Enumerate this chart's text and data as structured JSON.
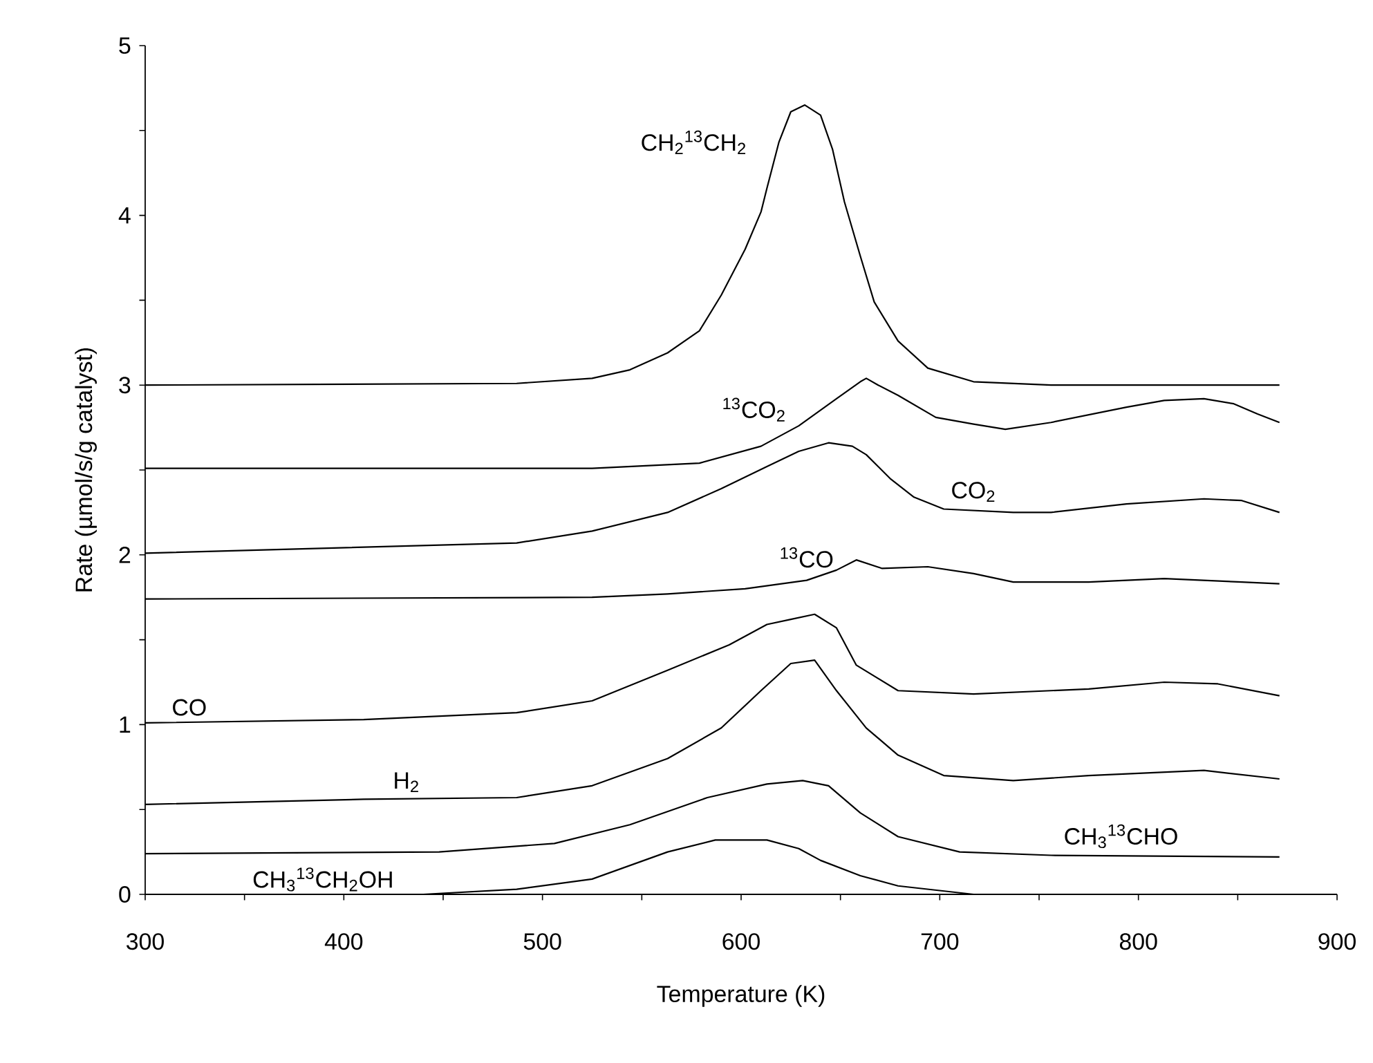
{
  "chart_data": {
    "type": "line",
    "xlabel": "Temperature (K)",
    "ylabel": "Rate (µmol/s/g catalyst)",
    "xlim": [
      300,
      900
    ],
    "ylim": [
      0,
      5
    ],
    "xticks": [
      300,
      {
        "value": 350,
        "label": null
      },
      400,
      {
        "value": 450,
        "label": null
      },
      500,
      {
        "value": 550,
        "label": null
      },
      600,
      {
        "value": 650,
        "label": null
      },
      700,
      {
        "value": 750,
        "label": null
      },
      800,
      {
        "value": 850,
        "label": null
      },
      900
    ],
    "yticks": [
      0,
      {
        "value": 0.5,
        "label": null
      },
      1,
      {
        "value": 1.5,
        "label": null
      },
      2,
      {
        "value": 2.5,
        "label": null
      },
      3,
      {
        "value": 3.5,
        "label": null
      },
      4,
      {
        "value": 4.5,
        "label": null
      },
      5
    ],
    "grid": false,
    "legend": false,
    "marker": "none",
    "line_style": "solid",
    "series": [
      {
        "name": "CH$_{2}$$^{13}$CH$_{2}$",
        "color": "#000000",
        "x": [
          300,
          487,
          525,
          544,
          563,
          579,
          590,
          602,
          610,
          613,
          619,
          625,
          632,
          640,
          646,
          652,
          660,
          667,
          679,
          694,
          717,
          756,
          871
        ],
        "values": [
          3.0,
          3.01,
          3.04,
          3.09,
          3.19,
          3.32,
          3.53,
          3.8,
          4.02,
          4.16,
          4.43,
          4.61,
          4.65,
          4.59,
          4.39,
          4.08,
          3.76,
          3.49,
          3.26,
          3.1,
          3.02,
          3.0,
          3.0
        ]
      },
      {
        "name": "$^{13}$CO$_{2}$",
        "color": "#000000",
        "x": [
          300,
          525,
          579,
          610,
          629,
          648,
          660,
          663,
          669,
          679,
          698,
          717,
          733,
          756,
          794,
          813,
          833,
          848,
          860,
          871
        ],
        "values": [
          2.51,
          2.51,
          2.54,
          2.64,
          2.76,
          2.92,
          3.02,
          3.04,
          3.0,
          2.94,
          2.81,
          2.77,
          2.74,
          2.78,
          2.87,
          2.91,
          2.92,
          2.89,
          2.83,
          2.78
        ]
      },
      {
        "name": "CO$_{2}$",
        "color": "#000000",
        "x": [
          300,
          487,
          525,
          563,
          590,
          613,
          629,
          644,
          656,
          663,
          675,
          687,
          702,
          737,
          756,
          794,
          833,
          852,
          871
        ],
        "values": [
          2.01,
          2.07,
          2.14,
          2.25,
          2.39,
          2.52,
          2.61,
          2.66,
          2.64,
          2.59,
          2.45,
          2.34,
          2.27,
          2.25,
          2.25,
          2.3,
          2.33,
          2.32,
          2.25
        ]
      },
      {
        "name": "$^{13}$CO",
        "color": "#000000",
        "x": [
          300,
          525,
          563,
          602,
          633,
          648,
          658,
          671,
          694,
          717,
          737,
          775,
          813,
          852,
          871
        ],
        "values": [
          1.74,
          1.75,
          1.77,
          1.8,
          1.85,
          1.91,
          1.97,
          1.92,
          1.93,
          1.89,
          1.84,
          1.84,
          1.86,
          1.84,
          1.83
        ]
      },
      {
        "name": "CO",
        "color": "#000000",
        "x": [
          300,
          410,
          487,
          525,
          563,
          594,
          613,
          625,
          637,
          648,
          658,
          679,
          717,
          775,
          813,
          840,
          871
        ],
        "values": [
          1.01,
          1.03,
          1.07,
          1.14,
          1.32,
          1.47,
          1.59,
          1.62,
          1.65,
          1.57,
          1.35,
          1.2,
          1.18,
          1.21,
          1.25,
          1.24,
          1.17
        ]
      },
      {
        "name": "H$_{2}$",
        "color": "#000000",
        "x": [
          300,
          410,
          487,
          525,
          563,
          590,
          610,
          625,
          637,
          648,
          663,
          679,
          702,
          737,
          775,
          833,
          871
        ],
        "values": [
          0.53,
          0.56,
          0.57,
          0.64,
          0.8,
          0.98,
          1.2,
          1.36,
          1.38,
          1.2,
          0.98,
          0.82,
          0.7,
          0.67,
          0.7,
          0.73,
          0.68
        ]
      },
      {
        "name": "CH$_{3}$$^{13}$CHO",
        "color": "#000000",
        "x": [
          300,
          448,
          506,
          544,
          583,
          613,
          631,
          644,
          660,
          679,
          710,
          756,
          871
        ],
        "values": [
          0.24,
          0.25,
          0.3,
          0.41,
          0.57,
          0.65,
          0.67,
          0.64,
          0.48,
          0.34,
          0.25,
          0.23,
          0.22
        ]
      },
      {
        "name": "CH$_{3}$$^{13}$CH$_{2}$OH",
        "color": "#000000",
        "x": [
          400,
          440,
          487,
          525,
          563,
          587,
          613,
          629,
          640,
          660,
          679,
          717,
          871
        ],
        "values": [
          0,
          0,
          0.03,
          0.09,
          0.25,
          0.32,
          0.32,
          0.27,
          0.2,
          0.11,
          0.05,
          0,
          0
        ]
      }
    ]
  }
}
